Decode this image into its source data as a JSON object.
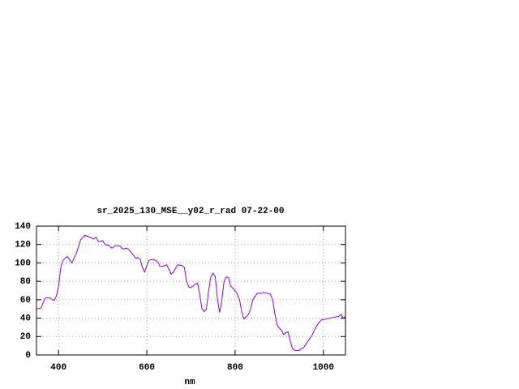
{
  "chart_data": {
    "type": "line",
    "title": "sr_2025_130_MSE__y02_r_rad 07-22-00",
    "x_label": "nm",
    "x": [
      350,
      360,
      370,
      380,
      390,
      395,
      400,
      405,
      410,
      420,
      430,
      440,
      450,
      460,
      470,
      480,
      485,
      490,
      500,
      505,
      515,
      520,
      530,
      540,
      545,
      555,
      560,
      570,
      575,
      580,
      585,
      590,
      595,
      600,
      605,
      615,
      625,
      630,
      640,
      645,
      650,
      655,
      660,
      670,
      680,
      685,
      690,
      695,
      700,
      710,
      715,
      720,
      725,
      730,
      735,
      740,
      745,
      750,
      755,
      760,
      765,
      770,
      775,
      780,
      785,
      790,
      800,
      805,
      810,
      815,
      820,
      830,
      835,
      840,
      850,
      860,
      865,
      880,
      885,
      890,
      895,
      900,
      905,
      910,
      915,
      920,
      925,
      930,
      935,
      945,
      955,
      965,
      975,
      985,
      995,
      1005,
      1015,
      1025,
      1035,
      1040,
      1045,
      1050
    ],
    "values": [
      50,
      51,
      62,
      62,
      59,
      64,
      75,
      95,
      103,
      107,
      100,
      110,
      125,
      130,
      128,
      126,
      128,
      123,
      124,
      120,
      119,
      116,
      119,
      118,
      115,
      116,
      114,
      108,
      105,
      106,
      104,
      95,
      90,
      97,
      103,
      104,
      101,
      96,
      97,
      98,
      93,
      88,
      90,
      98,
      97,
      95,
      80,
      74,
      73,
      77,
      78,
      65,
      50,
      47,
      50,
      70,
      85,
      89,
      85,
      60,
      46,
      60,
      80,
      85,
      84,
      75,
      70,
      66,
      60,
      47,
      39,
      44,
      50,
      60,
      67,
      67,
      68,
      66,
      60,
      45,
      33,
      29,
      27,
      22,
      24,
      25,
      15,
      7,
      5,
      5,
      8,
      15,
      22,
      32,
      38,
      39,
      40,
      41,
      42,
      44,
      40,
      42
    ],
    "color": "#9400d3",
    "xlim": [
      350,
      1050
    ],
    "xticks": [
      400,
      600,
      800,
      1000
    ],
    "ylim": [
      0,
      140
    ],
    "yticks": [
      0,
      20,
      40,
      60,
      80,
      100,
      120,
      140
    ],
    "grid": true
  }
}
